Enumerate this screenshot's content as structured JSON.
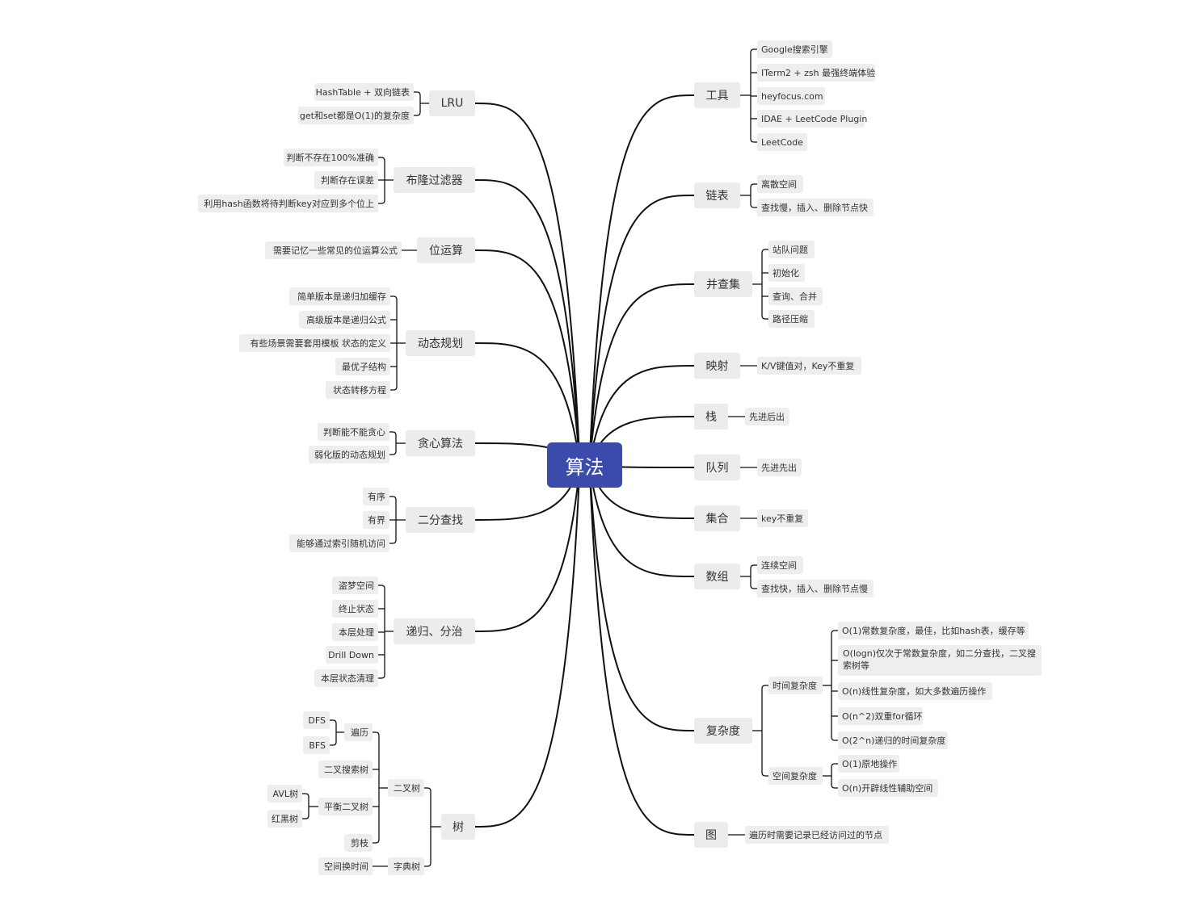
{
  "mindmap": {
    "root": "算法",
    "colors": {
      "root": "#3a4bab",
      "line": "#111111",
      "node_bg": "#ececec"
    },
    "right": [
      {
        "label": "工具",
        "children": [
          {
            "label": "Google搜索引擎"
          },
          {
            "label": "ITerm2 + zsh 最强终端体验"
          },
          {
            "label": "heyfocus.com"
          },
          {
            "label": "IDAE + LeetCode Plugin"
          },
          {
            "label": "LeetCode"
          }
        ]
      },
      {
        "label": "链表",
        "children": [
          {
            "label": "离散空间"
          },
          {
            "label": "查找慢，插入、删除节点快"
          }
        ]
      },
      {
        "label": "并查集",
        "children": [
          {
            "label": "站队问题"
          },
          {
            "label": "初始化"
          },
          {
            "label": "查询、合并"
          },
          {
            "label": "路径压缩"
          }
        ]
      },
      {
        "label": "映射",
        "children": [
          {
            "label": "K/V键值对，Key不重复"
          }
        ]
      },
      {
        "label": "栈",
        "children": [
          {
            "label": "先进后出"
          }
        ]
      },
      {
        "label": "队列",
        "children": [
          {
            "label": "先进先出"
          }
        ]
      },
      {
        "label": "集合",
        "children": [
          {
            "label": "key不重复"
          }
        ]
      },
      {
        "label": "数组",
        "children": [
          {
            "label": "连续空间"
          },
          {
            "label": "查找快，插入、删除节点慢"
          }
        ]
      },
      {
        "label": "复杂度",
        "children": [
          {
            "label": "时间复杂度",
            "children": [
              {
                "label": "O(1)常数复杂度，最佳，比如hash表，缓存等"
              },
              {
                "label": "O(logn)仅次于常数复杂度，如二分查找，二叉搜索树等"
              },
              {
                "label": "O(n)线性复杂度，如大多数遍历操作"
              },
              {
                "label": "O(n^2)双重for循环"
              },
              {
                "label": "O(2^n)递归的时间复杂度"
              }
            ]
          },
          {
            "label": "空间复杂度",
            "children": [
              {
                "label": "O(1)原地操作"
              },
              {
                "label": "O(n)开辟线性辅助空间"
              }
            ]
          }
        ]
      },
      {
        "label": "图",
        "children": [
          {
            "label": "遍历时需要记录已经访问过的节点"
          }
        ]
      }
    ],
    "left": [
      {
        "label": "LRU",
        "children": [
          {
            "label": "HashTable + 双向链表"
          },
          {
            "label": "get和set都是O(1)的复杂度"
          }
        ]
      },
      {
        "label": "布隆过滤器",
        "children": [
          {
            "label": "判断不存在100%准确"
          },
          {
            "label": "判断存在误差"
          },
          {
            "label": "利用hash函数将待判断key对应到多个位上"
          }
        ]
      },
      {
        "label": "位运算",
        "children": [
          {
            "label": "需要记忆一些常见的位运算公式"
          }
        ]
      },
      {
        "label": "动态规划",
        "children": [
          {
            "label": "简单版本是递归加缓存"
          },
          {
            "label": "高级版本是递归公式"
          },
          {
            "label": "有些场景需要套用模板  状态的定义"
          },
          {
            "label": "最优子结构"
          },
          {
            "label": "状态转移方程"
          }
        ]
      },
      {
        "label": "贪心算法",
        "children": [
          {
            "label": "判断能不能贪心"
          },
          {
            "label": "弱化版的动态规划"
          }
        ]
      },
      {
        "label": "二分查找",
        "children": [
          {
            "label": "有序"
          },
          {
            "label": "有界"
          },
          {
            "label": "能够通过索引随机访问"
          }
        ]
      },
      {
        "label": "递归、分治",
        "children": [
          {
            "label": "盗梦空间"
          },
          {
            "label": "终止状态"
          },
          {
            "label": "本层处理"
          },
          {
            "label": "Drill Down"
          },
          {
            "label": "本层状态清理"
          }
        ]
      },
      {
        "label": "树",
        "children": [
          {
            "label": "二叉树",
            "children": [
              {
                "label": "遍历",
                "children": [
                  {
                    "label": "DFS"
                  },
                  {
                    "label": "BFS"
                  }
                ]
              },
              {
                "label": "二叉搜索树"
              },
              {
                "label": "平衡二叉树",
                "children": [
                  {
                    "label": "AVL树"
                  },
                  {
                    "label": "红黑树"
                  }
                ]
              },
              {
                "label": "剪枝"
              }
            ]
          },
          {
            "label": "字典树",
            "children": [
              {
                "label": "空间换时间"
              }
            ]
          }
        ]
      }
    ]
  }
}
